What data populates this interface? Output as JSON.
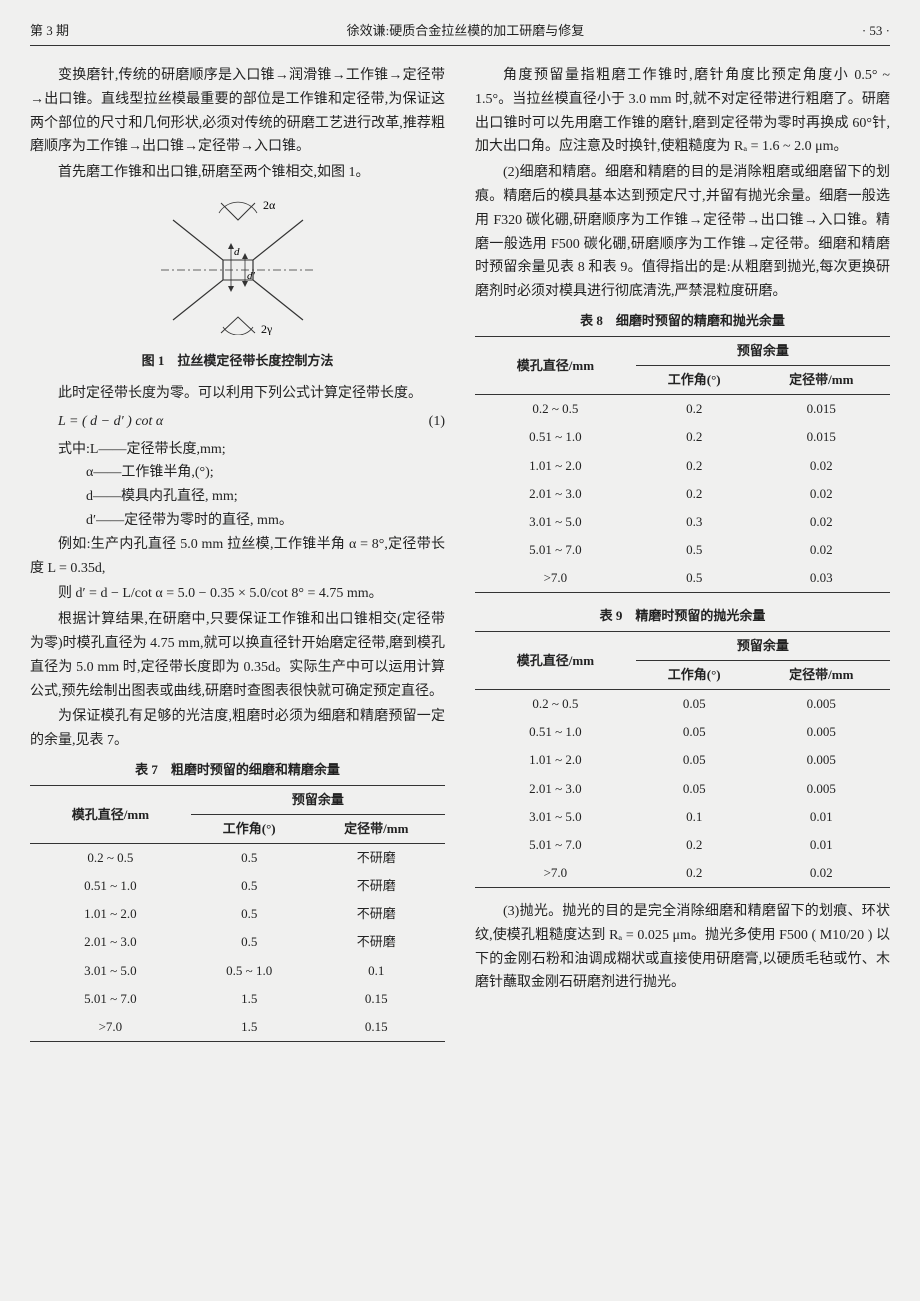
{
  "header": {
    "issue": "第 3 期",
    "center": "徐效谦:硬质合金拉丝模的加工研磨与修复",
    "page": "· 53 ·"
  },
  "left": {
    "p1": "变换磨针,传统的研磨顺序是入口锥→润滑锥→工作锥→定径带→出口锥。直线型拉丝模最重要的部位是工作锥和定径带,为保证这两个部位的尺寸和几何形状,必须对传统的研磨工艺进行改革,推荐粗磨顺序为工作锥→出口锥→定径带→入口锥。",
    "p2": "首先磨工作锥和出口锥,研磨至两个锥相交,如图 1。",
    "fig1_caption": "图 1　拉丝模定径带长度控制方法",
    "p3": "此时定径带长度为零。可以利用下列公式计算定径带长度。",
    "formula": "L = ( d − d′ ) cot α",
    "formula_num": "(1)",
    "where_intro": "式中:L——定径带长度,mm;",
    "where_alpha": "α——工作锥半角,(°);",
    "where_d": "d——模具内孔直径, mm;",
    "where_dprime": "d′——定径带为零时的直径, mm。",
    "p4": "例如:生产内孔直径 5.0 mm 拉丝模,工作锥半角 α = 8°,定径带长度 L = 0.35d,",
    "p5": "则 d′ = d − L/cot α = 5.0 − 0.35 × 5.0/cot 8° = 4.75 mm。",
    "p6": "根据计算结果,在研磨中,只要保证工作锥和出口锥相交(定径带为零)时模孔直径为 4.75 mm,就可以换直径针开始磨定径带,磨到模孔直径为 5.0 mm 时,定径带长度即为 0.35d。实际生产中可以运用计算公式,预先绘制出图表或曲线,研磨时查图表很快就可确定预定直径。",
    "p7": "为保证模孔有足够的光洁度,粗磨时必须为细磨和精磨预留一定的余量,见表 7。",
    "tbl7_title": "表 7　粗磨时预留的细磨和精磨余量",
    "tbl7": {
      "col1_head": "模孔直径/mm",
      "col_head_group": "预留余量",
      "col2_head": "工作角(°)",
      "col3_head": "定径带/mm",
      "rows": [
        [
          "0.2 ~ 0.5",
          "0.5",
          "不研磨"
        ],
        [
          "0.51 ~ 1.0",
          "0.5",
          "不研磨"
        ],
        [
          "1.01 ~ 2.0",
          "0.5",
          "不研磨"
        ],
        [
          "2.01 ~ 3.0",
          "0.5",
          "不研磨"
        ],
        [
          "3.01 ~ 5.0",
          "0.5 ~ 1.0",
          "0.1"
        ],
        [
          "5.01 ~ 7.0",
          "1.5",
          "0.15"
        ],
        [
          ">7.0",
          "1.5",
          "0.15"
        ]
      ]
    }
  },
  "right": {
    "p1": "角度预留量指粗磨工作锥时,磨针角度比预定角度小 0.5° ~ 1.5°。当拉丝模直径小于 3.0 mm 时,就不对定径带进行粗磨了。研磨出口锥时可以先用磨工作锥的磨针,磨到定径带为零时再换成 60°针,加大出口角。应注意及时换针,使粗糙度为 Rₐ = 1.6 ~ 2.0 μm。",
    "p2": "(2)细磨和精磨。细磨和精磨的目的是消除粗磨或细磨留下的划痕。精磨后的模具基本达到预定尺寸,并留有抛光余量。细磨一般选用 F320 碳化硼,研磨顺序为工作锥→定径带→出口锥→入口锥。精磨一般选用 F500 碳化硼,研磨顺序为工作锥→定径带。细磨和精磨时预留余量见表 8 和表 9。值得指出的是:从粗磨到抛光,每次更换研磨剂时必须对模具进行彻底清洗,严禁混粒度研磨。",
    "tbl8_title": "表 8　细磨时预留的精磨和抛光余量",
    "tbl8": {
      "col1_head": "模孔直径/mm",
      "col_head_group": "预留余量",
      "col2_head": "工作角(°)",
      "col3_head": "定径带/mm",
      "rows": [
        [
          "0.2 ~ 0.5",
          "0.2",
          "0.015"
        ],
        [
          "0.51 ~ 1.0",
          "0.2",
          "0.015"
        ],
        [
          "1.01 ~ 2.0",
          "0.2",
          "0.02"
        ],
        [
          "2.01 ~ 3.0",
          "0.2",
          "0.02"
        ],
        [
          "3.01 ~ 5.0",
          "0.3",
          "0.02"
        ],
        [
          "5.01 ~ 7.0",
          "0.5",
          "0.02"
        ],
        [
          ">7.0",
          "0.5",
          "0.03"
        ]
      ]
    },
    "tbl9_title": "表 9　精磨时预留的抛光余量",
    "tbl9": {
      "col1_head": "模孔直径/mm",
      "col_head_group": "预留余量",
      "col2_head": "工作角(°)",
      "col3_head": "定径带/mm",
      "rows": [
        [
          "0.2 ~ 0.5",
          "0.05",
          "0.005"
        ],
        [
          "0.51 ~ 1.0",
          "0.05",
          "0.005"
        ],
        [
          "1.01 ~ 2.0",
          "0.05",
          "0.005"
        ],
        [
          "2.01 ~ 3.0",
          "0.05",
          "0.005"
        ],
        [
          "3.01 ~ 5.0",
          "0.1",
          "0.01"
        ],
        [
          "5.01 ~ 7.0",
          "0.2",
          "0.01"
        ],
        [
          ">7.0",
          "0.2",
          "0.02"
        ]
      ]
    },
    "p3": "(3)抛光。抛光的目的是完全消除细磨和精磨留下的划痕、环状纹,使模孔粗糙度达到 Rₐ = 0.025 μm。抛光多使用 F500 ( M10/20 ) 以下的金刚石粉和油调成糊状或直接使用研磨膏,以硬质毛毡或竹、木磨针蘸取金刚石研磨剂进行抛光。"
  },
  "fig1": {
    "label_top": "2α",
    "label_d": "d",
    "label_dprime": "d′",
    "label_bot": "2γ",
    "stroke": "#333",
    "width": 170,
    "height": 140
  }
}
